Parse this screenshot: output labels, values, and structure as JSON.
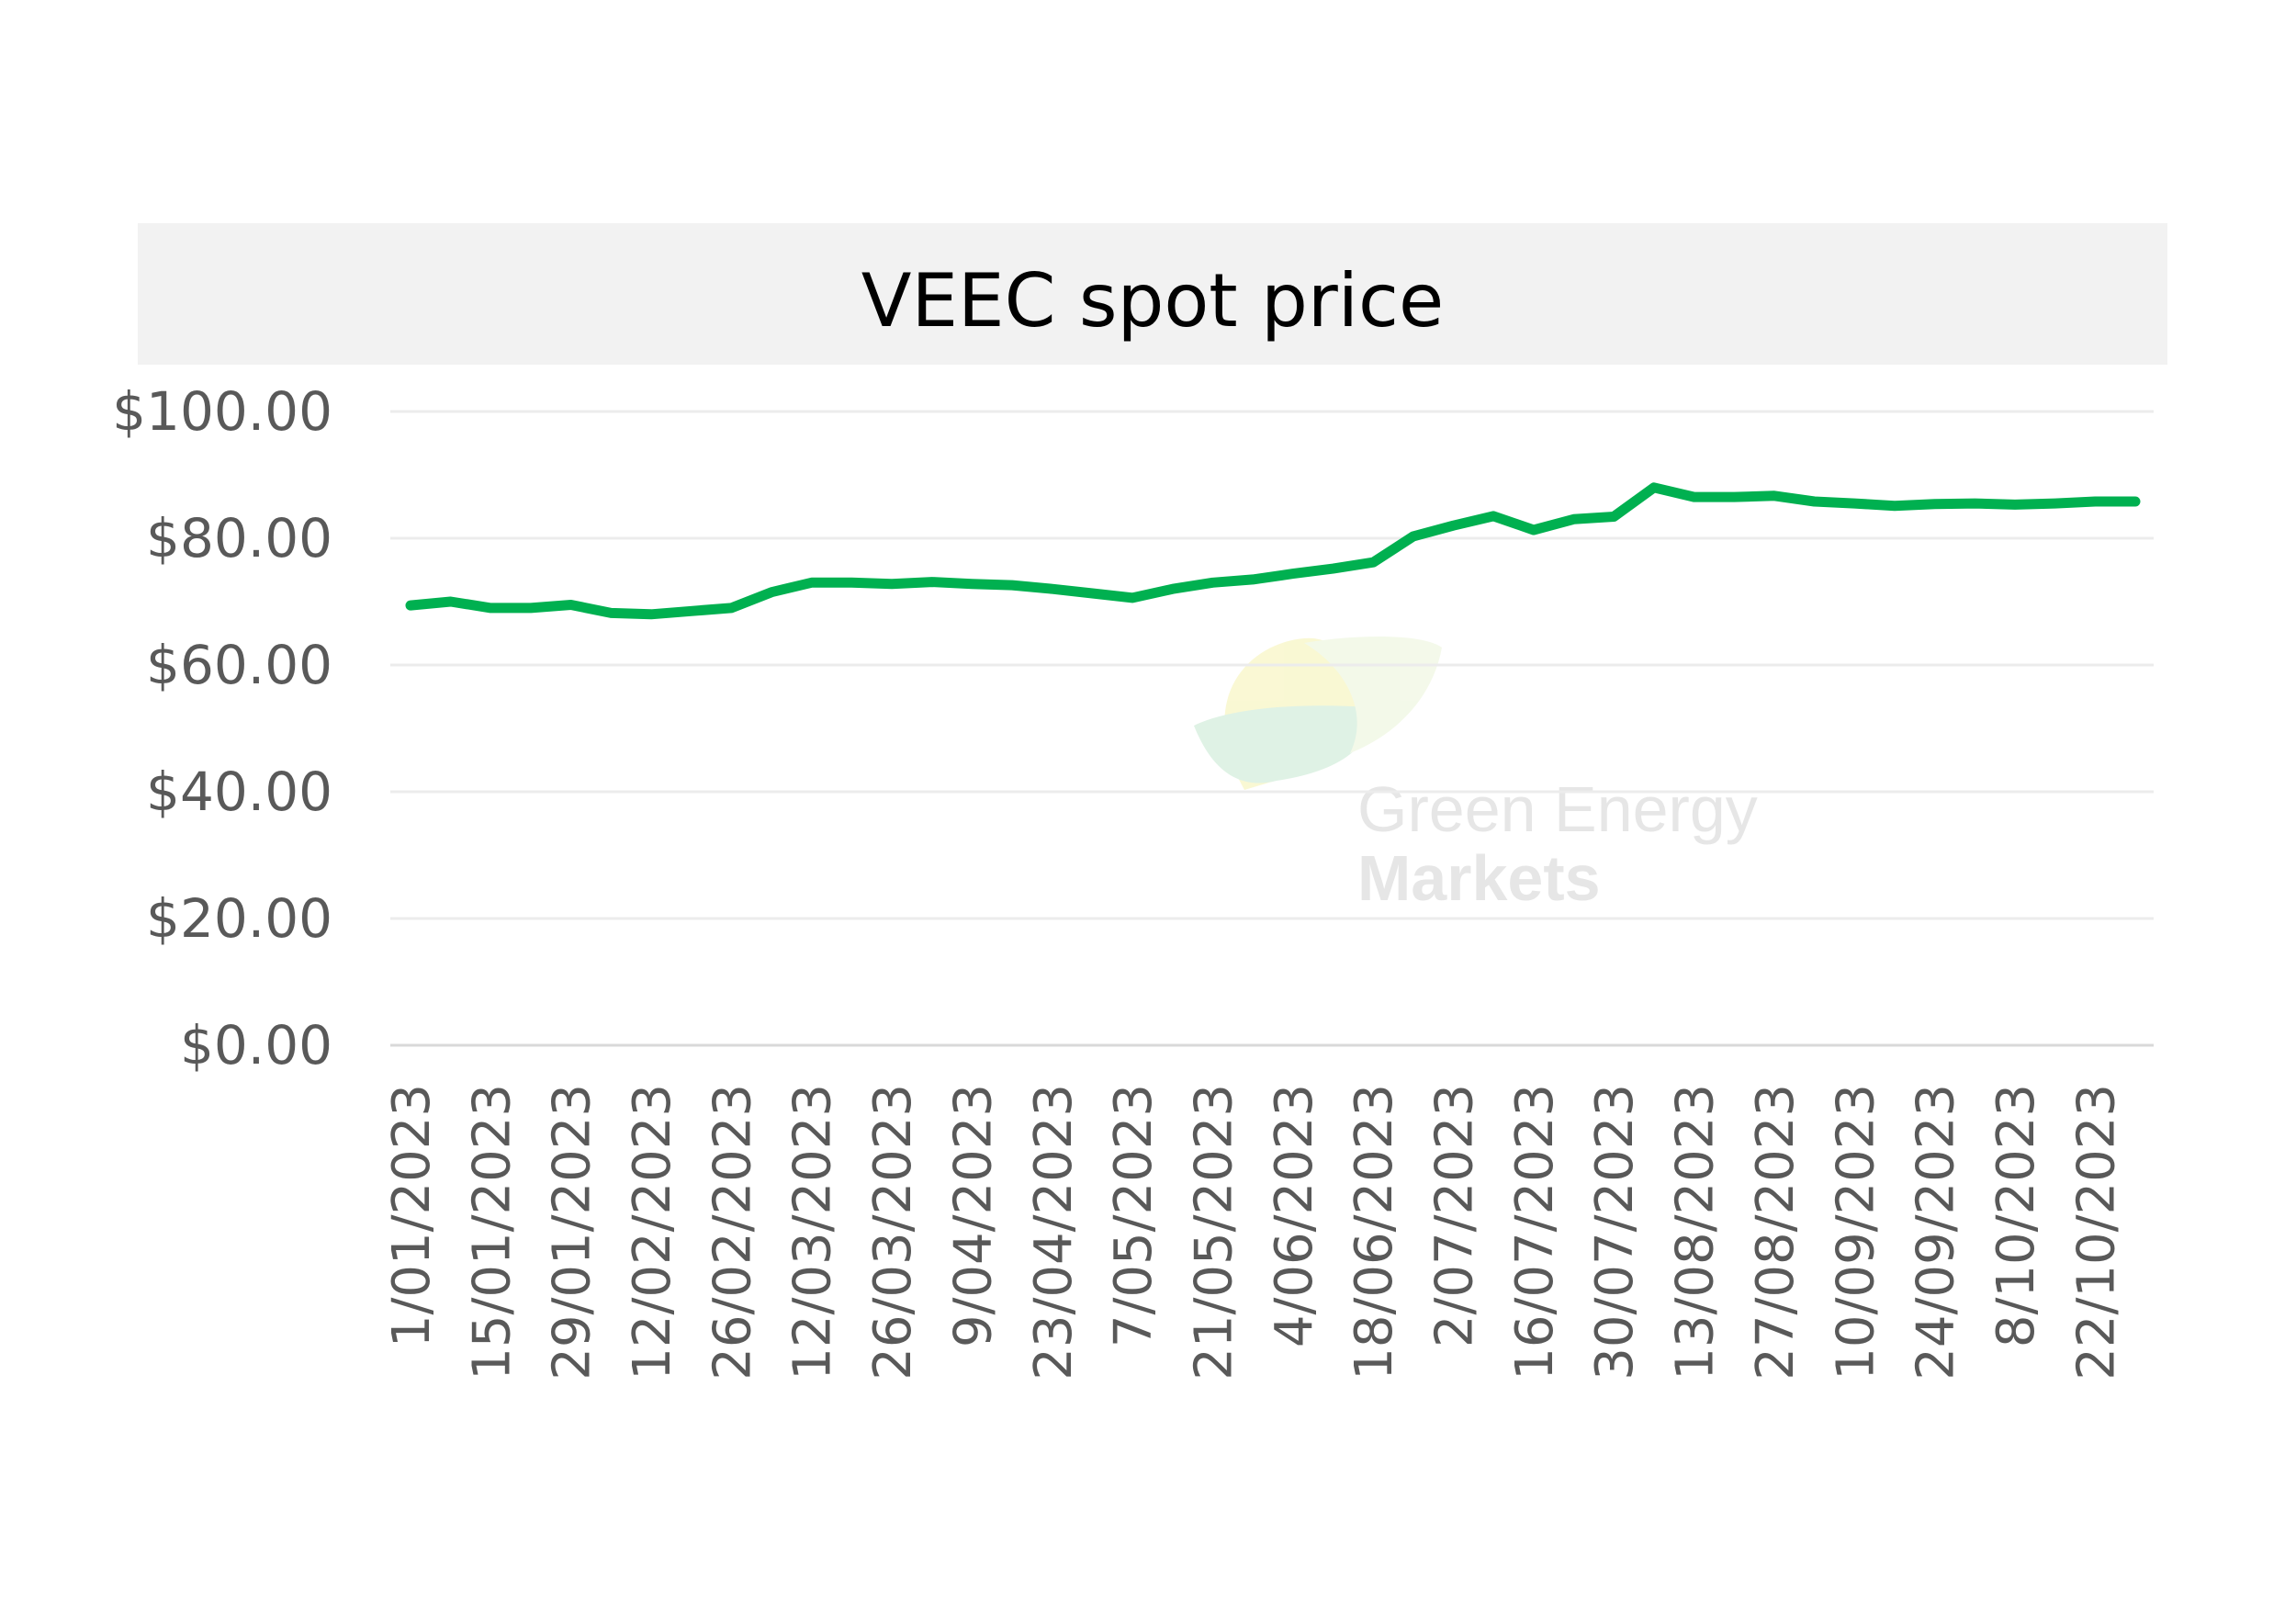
{
  "chart_data": {
    "type": "line",
    "title": "VEEC spot price",
    "xlabel": "",
    "ylabel": "",
    "ylim": [
      0,
      100
    ],
    "y_ticks": [
      "$0.00",
      "$20.00",
      "$40.00",
      "$60.00",
      "$80.00",
      "$100.00"
    ],
    "y_tick_values": [
      0,
      20,
      40,
      60,
      80,
      100
    ],
    "grid": true,
    "legend": "none",
    "line_color": "#00b050",
    "x_tick_labels": [
      "1/01/2023",
      "15/01/2023",
      "29/01/2023",
      "12/02/2023",
      "26/02/2023",
      "12/03/2023",
      "26/03/2023",
      "9/04/2023",
      "23/04/2023",
      "7/05/2023",
      "21/05/2023",
      "4/06/2023",
      "18/06/2023",
      "2/07/2023",
      "16/07/2023",
      "30/07/2023",
      "13/08/2023",
      "27/08/2023",
      "10/09/2023",
      "24/09/2023",
      "8/10/2023",
      "22/10/2023"
    ],
    "series": [
      {
        "x": [
          "1/01/2023",
          "8/01/2023",
          "15/01/2023",
          "22/01/2023",
          "29/01/2023",
          "5/02/2023",
          "12/02/2023",
          "19/02/2023",
          "26/02/2023",
          "5/03/2023",
          "12/03/2023",
          "19/03/2023",
          "26/03/2023",
          "2/04/2023",
          "9/04/2023",
          "16/04/2023",
          "23/04/2023",
          "30/04/2023",
          "7/05/2023",
          "14/05/2023",
          "21/05/2023",
          "28/05/2023",
          "4/06/2023",
          "11/06/2023",
          "18/06/2023",
          "25/06/2023",
          "2/07/2023",
          "9/07/2023",
          "16/07/2023",
          "23/07/2023",
          "30/07/2023",
          "6/08/2023",
          "13/08/2023",
          "20/08/2023",
          "27/08/2023",
          "3/09/2023",
          "10/09/2023",
          "17/09/2023",
          "24/09/2023",
          "1/10/2023",
          "8/10/2023",
          "15/10/2023",
          "22/10/2023",
          "29/10/2023"
        ],
        "values": [
          69.4,
          70.0,
          69.0,
          69.0,
          69.5,
          68.2,
          68.0,
          68.5,
          69.0,
          71.5,
          73.0,
          73.0,
          72.8,
          73.1,
          72.8,
          72.6,
          72.0,
          71.3,
          70.6,
          72.0,
          73.0,
          73.5,
          74.4,
          75.2,
          76.2,
          80.3,
          82.0,
          83.5,
          81.3,
          83.0,
          83.4,
          88.0,
          86.5,
          86.5,
          86.7,
          85.8,
          85.5,
          85.1,
          85.4,
          85.5,
          85.3,
          85.5,
          85.8,
          85.8
        ]
      }
    ],
    "title_bar_color": "#f2f2f2",
    "grid_color": "#ececec",
    "axis_color": "#d9d9d9"
  },
  "watermark": {
    "line1": "Green Energy",
    "line2": "Markets"
  }
}
